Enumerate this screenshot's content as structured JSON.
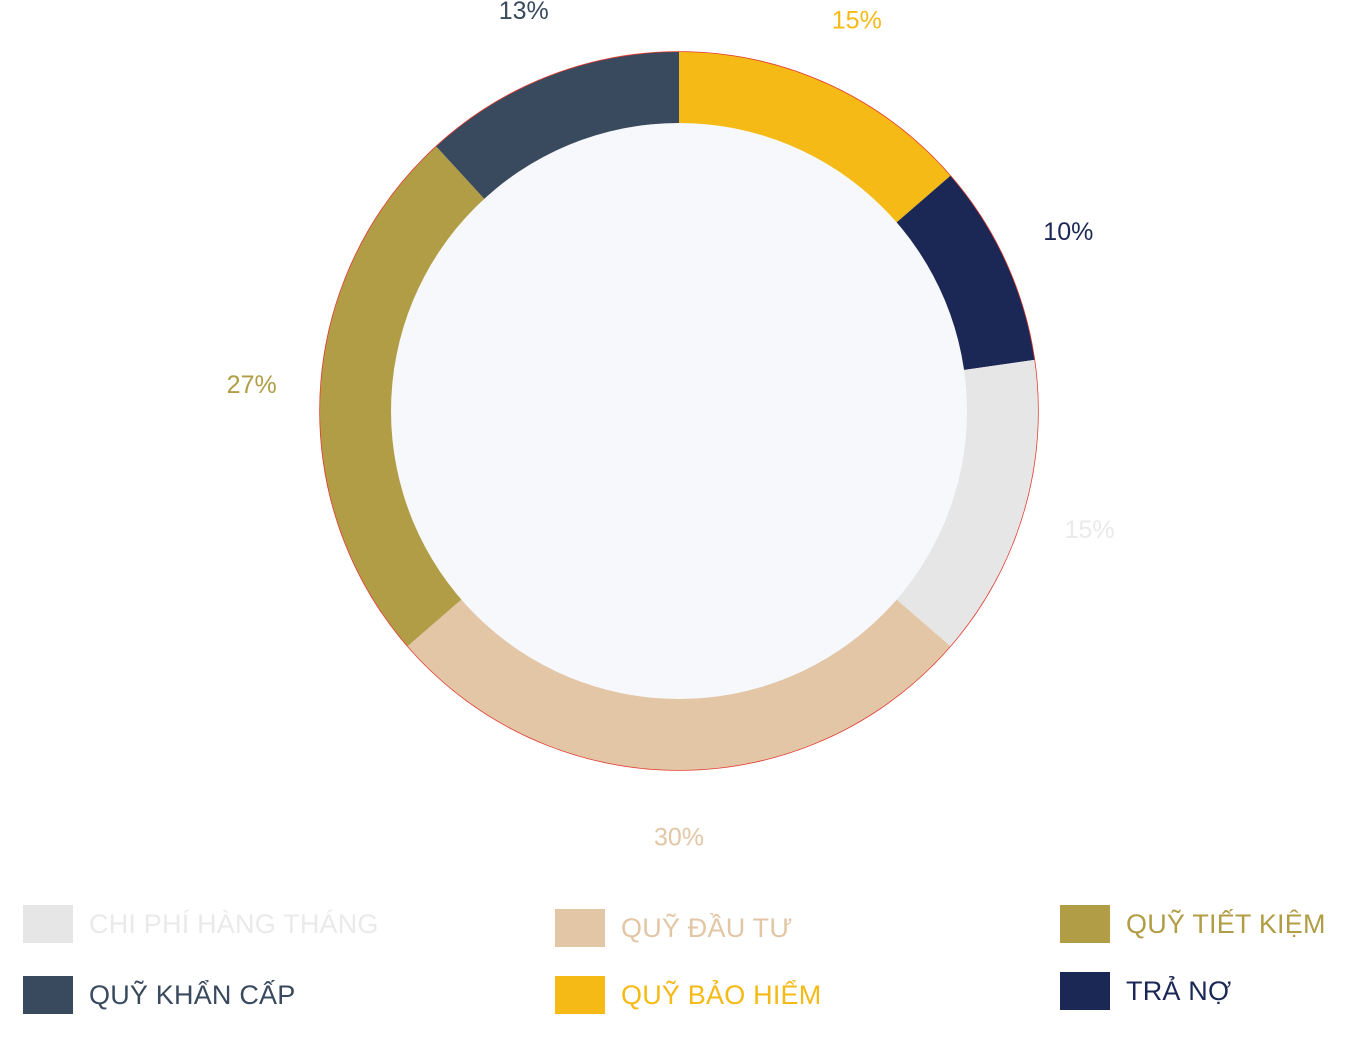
{
  "chart_data": {
    "type": "pie",
    "variant": "donut",
    "title": "",
    "slices": [
      {
        "label": "QUỸ BẢO HIỂM",
        "value": 15,
        "value_label": "15%",
        "color": "#F5BA16",
        "label_color": "#F5BA16"
      },
      {
        "label": "TRẢ NỢ",
        "value": 10,
        "value_label": "10%",
        "color": "#1B2855",
        "label_color": "#1B2855"
      },
      {
        "label": "CHI PHÍ HÀNG THÁNG",
        "value": 15,
        "value_label": "15%",
        "color": "#E6E6E6",
        "label_color": "#EAEAEA"
      },
      {
        "label": "QUỸ ĐẦU TƯ",
        "value": 30,
        "value_label": "30%",
        "color": "#E2C6A5",
        "label_color": "#E2C6A5"
      },
      {
        "label": "QUỸ TIẾT KIỆM",
        "value": 27,
        "value_label": "27%",
        "color": "#B09D46",
        "label_color": "#B09D46"
      },
      {
        "label": "QUỸ KHẨN CẤP",
        "value": 13,
        "value_label": "13%",
        "color": "#3A4A5E",
        "label_color": "#3A4A5E"
      }
    ],
    "center_color": "#F6F8FB",
    "outline_color": "#E33A2F",
    "legend": [
      {
        "label": "CHI PHÍ HÀNG THÁNG",
        "color": "#E6E6E6",
        "text_color": "#EAEAEA"
      },
      {
        "label": "QUỸ ĐẦU TƯ",
        "color": "#E2C6A5",
        "text_color": "#E2C6A5"
      },
      {
        "label": "QUỸ TIẾT KIỆM",
        "color": "#B09D46",
        "text_color": "#B09D46"
      },
      {
        "label": "QUỸ KHẨN CẤP",
        "color": "#3A4A5E",
        "text_color": "#3A4A5E"
      },
      {
        "label": "QUỸ BẢO HIỂM",
        "color": "#F5BA16",
        "text_color": "#F5BA16"
      },
      {
        "label": "TRẢ NỢ",
        "color": "#1B2855",
        "text_color": "#1B2855"
      }
    ]
  }
}
